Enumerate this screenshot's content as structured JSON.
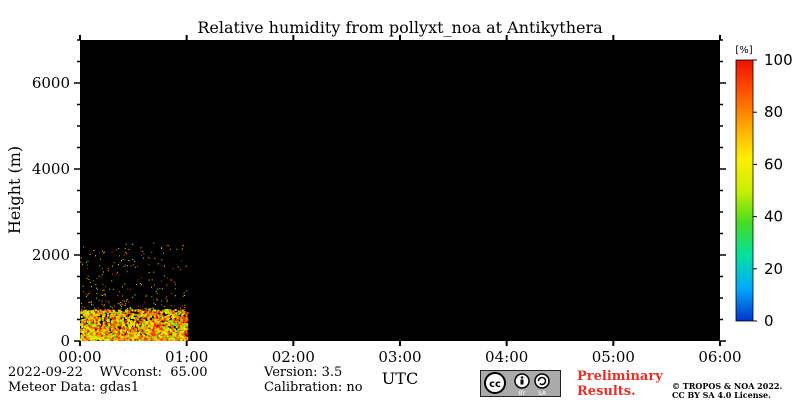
{
  "chart_data": {
    "type": "heatmap",
    "title": "Relative humidity from pollyxt_noa at Antikythera",
    "xlabel": "UTC",
    "ylabel": "Height (m)",
    "x_ticks": [
      "00:00",
      "01:00",
      "02:00",
      "03:00",
      "04:00",
      "05:00",
      "06:00"
    ],
    "xlim_hours": [
      0,
      6
    ],
    "y_ticks": [
      0,
      2000,
      4000,
      6000
    ],
    "ylim": [
      0,
      7000
    ],
    "background_color": "#000000",
    "colorbar": {
      "unit": "[%]",
      "ticks": [
        0,
        20,
        40,
        60,
        80,
        100
      ],
      "range": [
        0,
        100
      ],
      "colormap": [
        "#0033cc",
        "#00aaff",
        "#00e0a0",
        "#44dd22",
        "#ccee00",
        "#ffee00",
        "#ffa500",
        "#ff5500",
        "#ee1100"
      ]
    },
    "data_extent": {
      "time_hours": [
        0,
        1.0
      ],
      "dense_height_m": [
        0,
        700
      ],
      "sparse_height_m": [
        700,
        2300
      ],
      "dominant_values_percent": [
        40,
        100
      ]
    }
  },
  "footer": {
    "date_line": "2022-09-22    WVconst:  65.00",
    "meteor_line": "Meteor Data: gdas1",
    "version_line": "Version: 3.5",
    "calibration_line": "Calibration: no",
    "preliminary_line1": "Preliminary",
    "preliminary_line2": "Results.",
    "copyright_line1": "© TROPOS & NOA 2022.",
    "copyright_line2": "CC BY SA 4.0 License."
  },
  "license_badge": {
    "icon": "cc-by-sa-icon",
    "cc_text": "cc",
    "by_text": "BY",
    "sa_text": "SA"
  }
}
